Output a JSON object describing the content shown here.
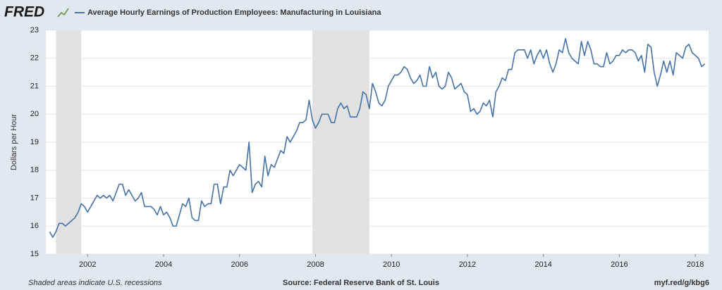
{
  "chart_data": {
    "type": "line",
    "logo": "FRED",
    "ylabel": "Dollars per Hour",
    "note": "Shaded areas indicate U.S. recessions",
    "source": "Source: Federal Reserve Bank of St. Louis",
    "url": "myf.red/g/kbg6",
    "xlim": [
      2000.9,
      2018.35
    ],
    "xticks": [
      2002,
      2004,
      2006,
      2008,
      2010,
      2012,
      2014,
      2016,
      2018
    ],
    "ylim": [
      15,
      23
    ],
    "yticks": [
      15,
      16,
      17,
      18,
      19,
      20,
      21,
      22,
      23
    ],
    "grid": true,
    "recession_color": "#e1e1e1",
    "recessions": [
      {
        "start": 2001.167,
        "end": 2001.833
      },
      {
        "start": 2007.917,
        "end": 2009.417
      }
    ],
    "x": [
      2001.0,
      2001.083,
      2001.167,
      2001.25,
      2001.333,
      2001.417,
      2001.5,
      2001.583,
      2001.667,
      2001.75,
      2001.833,
      2001.917,
      2002.0,
      2002.083,
      2002.167,
      2002.25,
      2002.333,
      2002.417,
      2002.5,
      2002.583,
      2002.667,
      2002.75,
      2002.833,
      2002.917,
      2003.0,
      2003.083,
      2003.167,
      2003.25,
      2003.333,
      2003.417,
      2003.5,
      2003.583,
      2003.667,
      2003.75,
      2003.833,
      2003.917,
      2004.0,
      2004.083,
      2004.167,
      2004.25,
      2004.333,
      2004.417,
      2004.5,
      2004.583,
      2004.667,
      2004.75,
      2004.833,
      2004.917,
      2005.0,
      2005.083,
      2005.167,
      2005.25,
      2005.333,
      2005.417,
      2005.5,
      2005.583,
      2005.667,
      2005.75,
      2005.833,
      2005.917,
      2006.0,
      2006.083,
      2006.167,
      2006.25,
      2006.333,
      2006.417,
      2006.5,
      2006.583,
      2006.667,
      2006.75,
      2006.833,
      2006.917,
      2007.0,
      2007.083,
      2007.167,
      2007.25,
      2007.333,
      2007.417,
      2007.5,
      2007.583,
      2007.667,
      2007.75,
      2007.833,
      2007.917,
      2008.0,
      2008.083,
      2008.167,
      2008.25,
      2008.333,
      2008.417,
      2008.5,
      2008.583,
      2008.667,
      2008.75,
      2008.833,
      2008.917,
      2009.0,
      2009.083,
      2009.167,
      2009.25,
      2009.333,
      2009.417,
      2009.5,
      2009.583,
      2009.667,
      2009.75,
      2009.833,
      2009.917,
      2010.0,
      2010.083,
      2010.167,
      2010.25,
      2010.333,
      2010.417,
      2010.5,
      2010.583,
      2010.667,
      2010.75,
      2010.833,
      2010.917,
      2011.0,
      2011.083,
      2011.167,
      2011.25,
      2011.333,
      2011.417,
      2011.5,
      2011.583,
      2011.667,
      2011.75,
      2011.833,
      2011.917,
      2012.0,
      2012.083,
      2012.167,
      2012.25,
      2012.333,
      2012.417,
      2012.5,
      2012.583,
      2012.667,
      2012.75,
      2012.833,
      2012.917,
      2013.0,
      2013.083,
      2013.167,
      2013.25,
      2013.333,
      2013.417,
      2013.5,
      2013.583,
      2013.667,
      2013.75,
      2013.833,
      2013.917,
      2014.0,
      2014.083,
      2014.167,
      2014.25,
      2014.333,
      2014.417,
      2014.5,
      2014.583,
      2014.667,
      2014.75,
      2014.833,
      2014.917,
      2015.0,
      2015.083,
      2015.167,
      2015.25,
      2015.333,
      2015.417,
      2015.5,
      2015.583,
      2015.667,
      2015.75,
      2015.833,
      2015.917,
      2016.0,
      2016.083,
      2016.167,
      2016.25,
      2016.333,
      2016.417,
      2016.5,
      2016.583,
      2016.667,
      2016.75,
      2016.833,
      2016.917,
      2017.0,
      2017.083,
      2017.167,
      2017.25,
      2017.333,
      2017.417,
      2017.5,
      2017.583,
      2017.667,
      2017.75,
      2017.833,
      2017.917,
      2018.0,
      2018.083,
      2018.167,
      2018.25
    ],
    "series": [
      {
        "name": "Average Hourly Earnings of Production Employees: Manufacturing in Louisiana",
        "color": "#4572a7",
        "values": [
          15.8,
          15.6,
          15.8,
          16.1,
          16.1,
          16.0,
          16.1,
          16.2,
          16.3,
          16.5,
          16.8,
          16.7,
          16.5,
          16.7,
          16.9,
          17.1,
          17.0,
          17.1,
          17.0,
          17.1,
          16.9,
          17.2,
          17.5,
          17.5,
          17.1,
          17.3,
          17.1,
          16.9,
          17.0,
          17.2,
          16.7,
          16.7,
          16.7,
          16.6,
          16.4,
          16.7,
          16.4,
          16.5,
          16.3,
          16.0,
          16.0,
          16.4,
          16.8,
          16.7,
          17.0,
          16.3,
          16.2,
          16.2,
          16.9,
          16.7,
          16.8,
          16.8,
          17.5,
          17.5,
          16.8,
          17.4,
          17.4,
          18.0,
          17.8,
          18.0,
          18.2,
          18.1,
          18.0,
          19.0,
          17.2,
          17.5,
          17.6,
          17.4,
          18.5,
          17.8,
          18.2,
          18.1,
          18.4,
          18.7,
          18.6,
          19.2,
          19.0,
          19.2,
          19.4,
          19.7,
          19.7,
          19.8,
          20.5,
          19.8,
          19.5,
          19.7,
          20.0,
          20.0,
          20.0,
          19.7,
          19.7,
          20.2,
          20.4,
          20.2,
          20.3,
          19.9,
          19.9,
          19.9,
          20.2,
          20.8,
          20.7,
          20.2,
          21.1,
          20.8,
          20.4,
          20.3,
          20.5,
          21.0,
          21.2,
          21.4,
          21.4,
          21.5,
          21.7,
          21.6,
          21.3,
          21.1,
          21.2,
          21.4,
          21.0,
          21.0,
          21.7,
          21.3,
          21.5,
          21.0,
          20.9,
          21.0,
          21.5,
          21.3,
          20.9,
          21.0,
          21.1,
          20.8,
          20.7,
          20.1,
          20.2,
          20.0,
          20.1,
          20.4,
          20.3,
          20.5,
          19.9,
          20.8,
          21.0,
          21.3,
          21.2,
          21.6,
          21.6,
          22.2,
          22.3,
          22.3,
          22.3,
          22.0,
          22.3,
          21.8,
          22.1,
          22.3,
          22.0,
          22.3,
          21.8,
          21.5,
          21.8,
          22.3,
          22.2,
          22.7,
          22.2,
          22.0,
          21.9,
          21.8,
          22.6,
          22.1,
          22.6,
          22.3,
          21.8,
          21.8,
          21.7,
          21.7,
          22.2,
          21.8,
          21.9,
          22.1,
          22.1,
          22.3,
          22.2,
          22.3,
          22.3,
          22.2,
          21.9,
          22.1,
          21.5,
          22.5,
          22.4,
          21.5,
          21.0,
          21.4,
          21.9,
          21.5,
          21.9,
          21.4,
          22.2,
          22.1,
          22.0,
          22.4,
          22.5,
          22.2,
          22.1,
          22.0,
          21.7,
          21.8
        ]
      }
    ]
  }
}
